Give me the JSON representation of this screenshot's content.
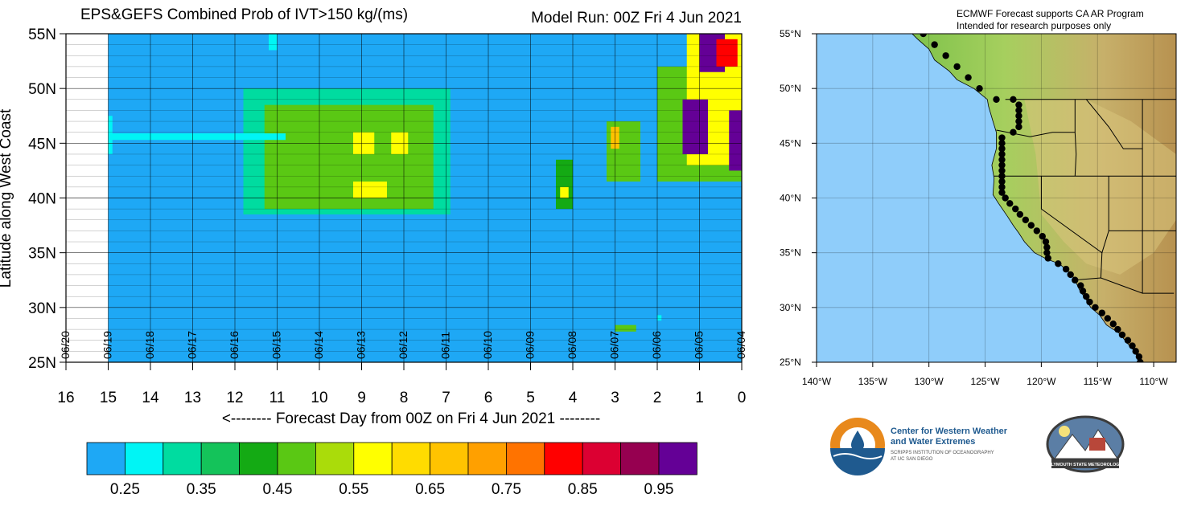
{
  "chart_data": [
    {
      "type": "heatmap",
      "title": "EPS&GEFS Combined Prob of IVT>150 kg/(ms)",
      "model_run": "Model Run: 00Z Fri 4 Jun 2021",
      "ylabel": "Latitude along West Coast",
      "xlabel": "<-------- Forecast Day from 00Z on Fri 4 Jun 2021 --------",
      "x_ticks": [
        "16",
        "15",
        "14",
        "13",
        "12",
        "11",
        "10",
        "9",
        "8",
        "7",
        "6",
        "5",
        "4",
        "3",
        "2",
        "1",
        "0"
      ],
      "date_labels": [
        "06/20",
        "06/19",
        "06/18",
        "06/17",
        "06/16",
        "06/15",
        "06/14",
        "06/13",
        "06/12",
        "06/11",
        "06/10",
        "06/09",
        "06/08",
        "06/07",
        "06/06",
        "06/05",
        "06/04"
      ],
      "y_ticks": [
        "55N",
        "50N",
        "45N",
        "40N",
        "35N",
        "30N",
        "25N"
      ],
      "xlim": [
        16,
        0
      ],
      "ylim": [
        25,
        55
      ],
      "grid": true,
      "data_extent_days": [
        15,
        0
      ],
      "background_prob": 0.2,
      "regions": [
        {
          "day_from": 11.8,
          "day_to": 6.9,
          "lat_from": 38.5,
          "lat_to": 50.0,
          "prob": 0.35
        },
        {
          "day_from": 11.3,
          "day_to": 7.3,
          "lat_from": 39.0,
          "lat_to": 48.5,
          "prob": 0.45
        },
        {
          "day_from": 10.3,
          "day_to": 7.8,
          "lat_from": 40.0,
          "lat_to": 46.5,
          "prob": 0.5
        },
        {
          "day_from": 9.2,
          "day_to": 8.7,
          "lat_from": 44.0,
          "lat_to": 46.0,
          "prob": 0.55
        },
        {
          "day_from": 8.3,
          "day_to": 7.9,
          "lat_from": 44.0,
          "lat_to": 46.0,
          "prob": 0.55
        },
        {
          "day_from": 9.2,
          "day_to": 8.4,
          "lat_from": 40.0,
          "lat_to": 41.5,
          "prob": 0.55
        },
        {
          "day_from": 11.2,
          "day_to": 11.0,
          "lat_from": 53.5,
          "lat_to": 55.0,
          "prob": 0.3
        },
        {
          "day_from": 15.0,
          "day_to": 10.8,
          "lat_from": 45.3,
          "lat_to": 45.9,
          "prob": 0.3
        },
        {
          "day_from": 15.0,
          "day_to": 14.9,
          "lat_from": 44.0,
          "lat_to": 47.5,
          "prob": 0.3
        },
        {
          "day_from": 4.4,
          "day_to": 4.0,
          "lat_from": 39.0,
          "lat_to": 43.5,
          "prob": 0.4
        },
        {
          "day_from": 4.3,
          "day_to": 4.1,
          "lat_from": 40.0,
          "lat_to": 41.0,
          "prob": 0.55
        },
        {
          "day_from": 3.2,
          "day_to": 2.4,
          "lat_from": 41.5,
          "lat_to": 47.0,
          "prob": 0.45
        },
        {
          "day_from": 3.1,
          "day_to": 2.9,
          "lat_from": 44.5,
          "lat_to": 46.5,
          "prob": 0.65
        },
        {
          "day_from": 3.0,
          "day_to": 2.5,
          "lat_from": 27.8,
          "lat_to": 28.4,
          "prob": 0.5
        },
        {
          "day_from": 2.0,
          "day_to": 1.9,
          "lat_from": 28.8,
          "lat_to": 29.3,
          "prob": 0.3
        },
        {
          "day_from": 2.0,
          "day_to": 0.0,
          "lat_from": 41.5,
          "lat_to": 52.0,
          "prob": 0.45
        },
        {
          "day_from": 1.3,
          "day_to": 0.0,
          "lat_from": 43.0,
          "lat_to": 55.0,
          "prob": 0.6
        },
        {
          "day_from": 1.0,
          "day_to": 0.4,
          "lat_from": 51.5,
          "lat_to": 55.0,
          "prob": 0.95
        },
        {
          "day_from": 1.4,
          "day_to": 0.8,
          "lat_from": 44.0,
          "lat_to": 49.0,
          "prob": 0.95
        },
        {
          "day_from": 0.6,
          "day_to": 0.1,
          "lat_from": 52.0,
          "lat_to": 54.5,
          "prob": 0.85
        },
        {
          "day_from": 0.3,
          "day_to": 0.0,
          "lat_from": 42.5,
          "lat_to": 48.0,
          "prob": 0.95
        }
      ]
    },
    {
      "type": "map",
      "note_line1": "ECMWF Forecast supports CA AR Program",
      "note_line2": "Intended for research purposes only",
      "lat_ticks": [
        "55°N",
        "50°N",
        "45°N",
        "40°N",
        "35°N",
        "30°N",
        "25°N"
      ],
      "lon_ticks": [
        "140°W",
        "135°W",
        "130°W",
        "125°W",
        "120°W",
        "115°W",
        "110°W"
      ],
      "lon_range": [
        -140,
        -108
      ],
      "lat_range": [
        25,
        55
      ],
      "coast_points": [
        [
          -130.5,
          55
        ],
        [
          -129.5,
          54
        ],
        [
          -128.5,
          53
        ],
        [
          -127.5,
          52
        ],
        [
          -126.5,
          51
        ],
        [
          -125.5,
          50
        ],
        [
          -124,
          49
        ],
        [
          -122.5,
          49
        ],
        [
          -122,
          48.5
        ],
        [
          -122,
          48
        ],
        [
          -122,
          47.5
        ],
        [
          -122,
          47
        ],
        [
          -122,
          46.5
        ],
        [
          -122.5,
          46
        ],
        [
          -123.5,
          45.5
        ],
        [
          -123.5,
          45
        ],
        [
          -123.5,
          44.5
        ],
        [
          -123.5,
          44
        ],
        [
          -123.5,
          43.5
        ],
        [
          -123.5,
          43
        ],
        [
          -123.5,
          42.5
        ],
        [
          -123.5,
          42
        ],
        [
          -123.5,
          41.5
        ],
        [
          -123.5,
          41
        ],
        [
          -123.5,
          40.5
        ],
        [
          -123.2,
          40
        ],
        [
          -122.8,
          39.5
        ],
        [
          -122.3,
          39
        ],
        [
          -121.9,
          38.5
        ],
        [
          -121.4,
          38
        ],
        [
          -120.9,
          37.5
        ],
        [
          -120.4,
          37
        ],
        [
          -119.9,
          36.5
        ],
        [
          -119.6,
          36
        ],
        [
          -119.5,
          35.5
        ],
        [
          -119.5,
          35
        ],
        [
          -119.4,
          34.5
        ],
        [
          -118.5,
          34
        ],
        [
          -117.8,
          33.5
        ],
        [
          -117.4,
          33
        ],
        [
          -117,
          32.5
        ],
        [
          -116.5,
          32
        ],
        [
          -116.3,
          31.5
        ],
        [
          -116,
          31
        ],
        [
          -115.7,
          30.5
        ],
        [
          -115.2,
          30
        ],
        [
          -114.6,
          29.5
        ],
        [
          -114.1,
          29
        ],
        [
          -113.6,
          28.5
        ],
        [
          -113.2,
          28
        ],
        [
          -112.8,
          27.5
        ],
        [
          -112.3,
          27
        ],
        [
          -111.9,
          26.5
        ],
        [
          -111.6,
          26
        ],
        [
          -111.3,
          25.5
        ],
        [
          -111.2,
          25
        ]
      ]
    }
  ],
  "colorbar": {
    "labels": [
      "0.25",
      "0.35",
      "0.45",
      "0.55",
      "0.65",
      "0.75",
      "0.85",
      "0.95"
    ],
    "colors": [
      "#1ea8f5",
      "#00f5f5",
      "#00dca0",
      "#14c35a",
      "#14aa14",
      "#5ac814",
      "#aadc0a",
      "#ffff00",
      "#ffdc00",
      "#ffc300",
      "#ffa000",
      "#ff7300",
      "#ff0000",
      "#dc0032",
      "#960050",
      "#640096"
    ]
  },
  "logos": {
    "cw3e_line1": "Center for Western Weather",
    "cw3e_line2": "and Water Extremes",
    "cw3e_line3": "SCRIPPS INSTITUTION OF OCEANOGRAPHY",
    "cw3e_line4": "AT UC SAN DIEGO",
    "psu_text": "PLYMOUTH STATE METEOROLOGY"
  }
}
